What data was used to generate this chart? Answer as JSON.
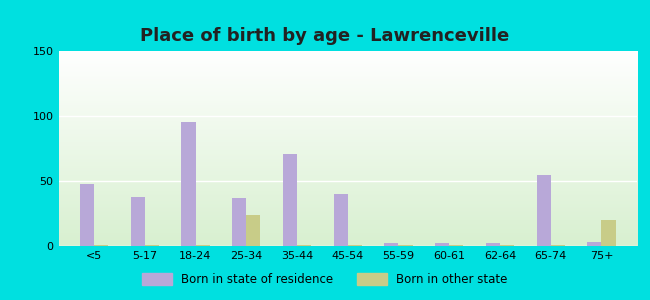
{
  "title": "Place of birth by age - Lawrenceville",
  "categories": [
    "<5",
    "5-17",
    "18-24",
    "25-34",
    "35-44",
    "45-54",
    "55-59",
    "60-61",
    "62-64",
    "65-74",
    "75+"
  ],
  "born_in_state": [
    48,
    38,
    95,
    37,
    71,
    40,
    2,
    2,
    2,
    55,
    3
  ],
  "born_other_state": [
    1,
    1,
    1,
    24,
    1,
    1,
    1,
    1,
    1,
    1,
    20
  ],
  "state_color": "#b8a8d8",
  "other_color": "#c8cc88",
  "background_outer": "#00e0e0",
  "ylim": [
    0,
    150
  ],
  "yticks": [
    0,
    50,
    100,
    150
  ],
  "legend_state": "Born in state of residence",
  "legend_other": "Born in other state",
  "title_fontsize": 13,
  "bar_width": 0.28
}
